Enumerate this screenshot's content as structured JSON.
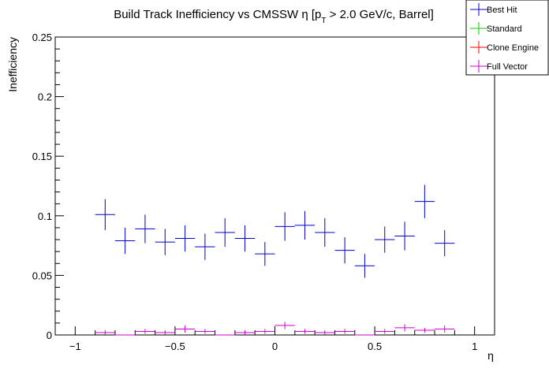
{
  "chart_data": {
    "type": "scatter",
    "title_main": "Build Track Inefficiency vs CMSSW η [p",
    "title_sub": "T",
    "title_rest": " > 2.0 GeV/c, Barrel]",
    "xlabel": "η",
    "ylabel": "Inefficiency",
    "xlim": [
      -1.1,
      1.1
    ],
    "ylim": [
      0,
      0.25
    ],
    "xticks": [
      -1,
      -0.5,
      0,
      0.5,
      1
    ],
    "xtick_labels": [
      "−1",
      "−0.5",
      "0",
      "0.5",
      "1"
    ],
    "yticks": [
      0,
      0.05,
      0.1,
      0.15,
      0.2,
      0.25
    ],
    "ytick_labels": [
      "0",
      "0.05",
      "0.1",
      "0.15",
      "0.2",
      "0.25"
    ],
    "legend_position": "top-right",
    "series": [
      {
        "name": "Best Hit",
        "color": "#0000cc",
        "x": [
          -0.85,
          -0.75,
          -0.65,
          -0.55,
          -0.45,
          -0.35,
          -0.25,
          -0.15,
          -0.05,
          0.05,
          0.15,
          0.25,
          0.35,
          0.45,
          0.55,
          0.65,
          0.75,
          0.85
        ],
        "y": [
          0.101,
          0.079,
          0.089,
          0.078,
          0.081,
          0.074,
          0.086,
          0.081,
          0.068,
          0.091,
          0.092,
          0.086,
          0.071,
          0.058,
          0.08,
          0.083,
          0.112,
          0.077
        ],
        "yerr": [
          0.013,
          0.011,
          0.012,
          0.011,
          0.011,
          0.011,
          0.012,
          0.011,
          0.01,
          0.012,
          0.012,
          0.012,
          0.011,
          0.01,
          0.011,
          0.012,
          0.014,
          0.011
        ]
      },
      {
        "name": "Standard",
        "color": "#00cc00",
        "x": [],
        "y": [],
        "yerr": []
      },
      {
        "name": "Clone Engine",
        "color": "#ff0000",
        "x": [],
        "y": [],
        "yerr": []
      },
      {
        "name": "Full Vector",
        "color": "#cc00cc",
        "x": [
          -0.85,
          -0.75,
          -0.65,
          -0.55,
          -0.45,
          -0.35,
          -0.25,
          -0.15,
          -0.05,
          0.05,
          0.15,
          0.25,
          0.35,
          0.45,
          0.55,
          0.65,
          0.75,
          0.85
        ],
        "y": [
          0.002,
          0.0,
          0.003,
          0.002,
          0.005,
          0.003,
          0.0,
          0.002,
          0.003,
          0.008,
          0.003,
          0.002,
          0.003,
          0.0,
          0.003,
          0.006,
          0.004,
          0.005
        ],
        "yerr": [
          0.002,
          0.0,
          0.002,
          0.002,
          0.003,
          0.002,
          0.0,
          0.002,
          0.002,
          0.003,
          0.002,
          0.002,
          0.002,
          0.0,
          0.002,
          0.003,
          0.002,
          0.003
        ]
      }
    ]
  }
}
